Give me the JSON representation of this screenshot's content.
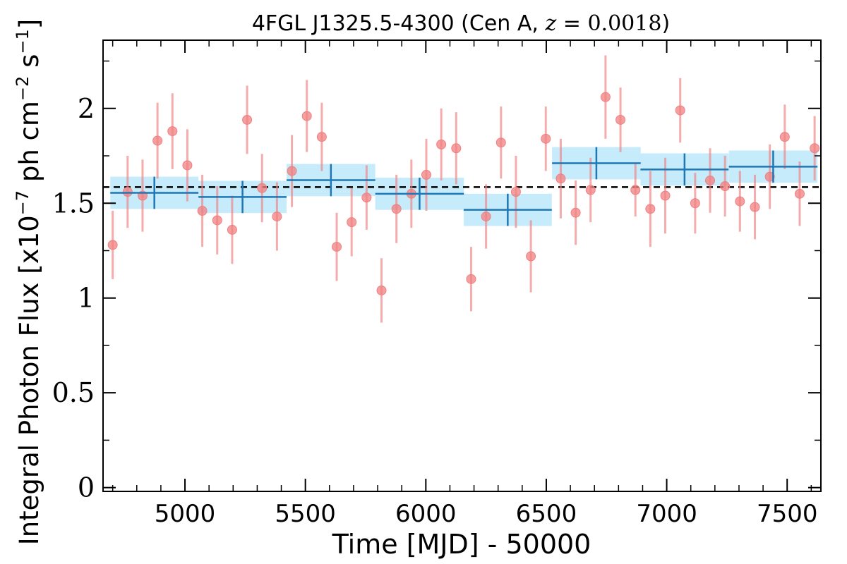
{
  "chart_data": {
    "type": "scatter",
    "title": {
      "prefix": "4FGL J1325.5-4300 (Cen A, ",
      "z_symbol": "z",
      "equals": " = ",
      "z_value": "0.0018",
      "suffix": ")"
    },
    "xlabel": "Time [MJD] - 50000",
    "ylabel": {
      "prefix": "Integral Photon Flux [x10",
      "exp1": "−7",
      "mid1": " ph cm",
      "exp2": "−2",
      "mid2": " s",
      "exp3": "−1",
      "suffix": "]"
    },
    "xlim": [
      4660,
      7640
    ],
    "ylim": [
      -0.02,
      2.36
    ],
    "xticks": [
      5000,
      5500,
      6000,
      6500,
      7000,
      7500
    ],
    "xtick_labels": [
      "5000",
      "5500",
      "6000",
      "6500",
      "7000",
      "7500"
    ],
    "yticks": [
      0,
      0.5,
      1,
      1.5,
      2
    ],
    "ytick_labels": [
      "0",
      "0.5",
      "1",
      "1.5",
      "2"
    ],
    "grid": false,
    "mean_flux": 1.585,
    "colors": {
      "points": "#f08080",
      "bins": "#1f77b4",
      "band": "#c6ebfb",
      "mean_line": "#000000"
    },
    "series": [
      {
        "x": [
          4700,
          4762,
          4824,
          4886,
          4948,
          5010,
          5072,
          5134,
          5196,
          5258,
          5320,
          5382,
          5444,
          5506,
          5568,
          5630,
          5692,
          5754,
          5816,
          5878,
          5940,
          6002,
          6064,
          6126,
          6188,
          6250,
          6312,
          6374,
          6436,
          6498,
          6560,
          6622,
          6684,
          6746,
          6808,
          6870,
          6932,
          6994,
          7056,
          7118,
          7180,
          7242,
          7304,
          7366,
          7428,
          7490,
          7552,
          7614
        ],
        "y": [
          1.28,
          1.56,
          1.54,
          1.83,
          1.88,
          1.7,
          1.46,
          1.41,
          1.36,
          1.94,
          1.58,
          1.43,
          1.67,
          1.96,
          1.85,
          1.27,
          1.4,
          1.53,
          1.04,
          1.47,
          1.55,
          1.65,
          1.81,
          1.79,
          1.1,
          1.43,
          1.82,
          1.56,
          1.22,
          1.84,
          1.63,
          1.45,
          1.57,
          2.06,
          1.94,
          1.57,
          1.47,
          1.54,
          1.99,
          1.5,
          1.62,
          1.59,
          1.51,
          1.48,
          1.64,
          1.85,
          1.55,
          1.79
        ],
        "err": [
          0.18,
          0.19,
          0.19,
          0.2,
          0.2,
          0.19,
          0.19,
          0.18,
          0.18,
          0.18,
          0.18,
          0.18,
          0.19,
          0.19,
          0.18,
          0.18,
          0.18,
          0.17,
          0.17,
          0.18,
          0.18,
          0.19,
          0.19,
          0.19,
          0.17,
          0.17,
          0.19,
          0.19,
          0.19,
          0.17,
          0.21,
          0.17,
          0.17,
          0.22,
          0.17,
          0.14,
          0.2,
          0.2,
          0.17,
          0.16,
          0.17,
          0.16,
          0.16,
          0.17,
          0.17,
          0.17,
          0.17,
          0.17
        ]
      },
      {
        "x": [
          4873,
          5239,
          5606,
          5974,
          6340,
          6708,
          7074,
          7442
        ],
        "x_half_width": [
          183,
          183,
          184,
          184,
          183,
          184,
          183,
          184
        ],
        "y": [
          1.555,
          1.533,
          1.622,
          1.55,
          1.465,
          1.711,
          1.678,
          1.693
        ],
        "err": [
          0.085,
          0.085,
          0.085,
          0.085,
          0.085,
          0.085,
          0.085,
          0.085
        ]
      }
    ]
  }
}
